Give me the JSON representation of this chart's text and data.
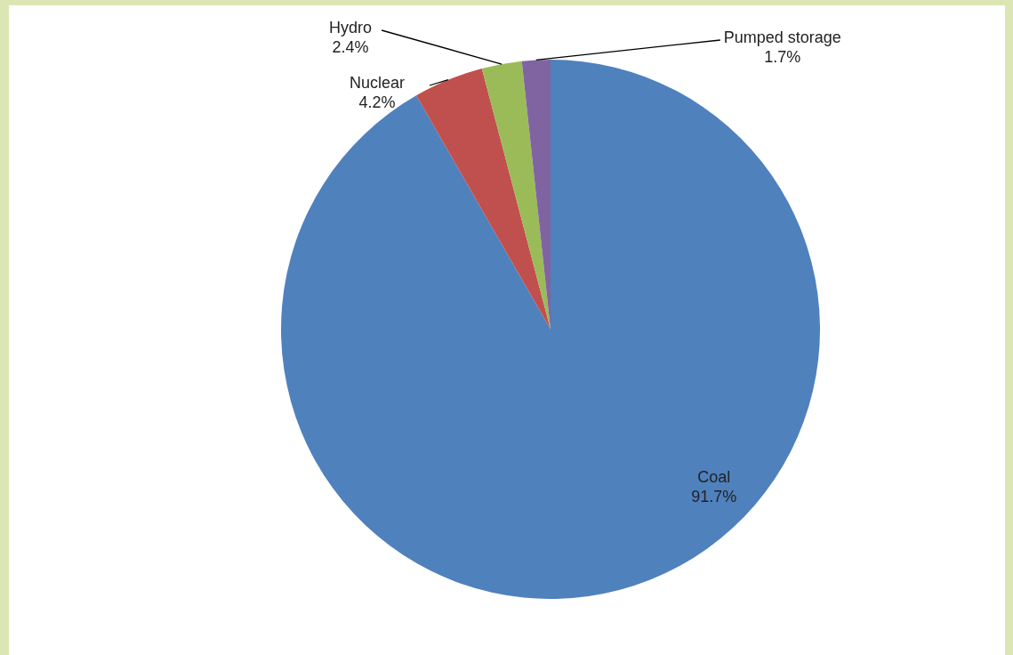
{
  "chart_data": {
    "type": "pie",
    "categories": [
      "Coal",
      "Nuclear",
      "Hydro",
      "Pumped storage"
    ],
    "values": [
      91.7,
      4.2,
      2.4,
      1.7
    ],
    "colors": [
      "#4f81bd",
      "#c0504d",
      "#9bbb59",
      "#8064a2"
    ],
    "value_labels": [
      "91.7%",
      "4.2%",
      "2.4%",
      "1.7%"
    ]
  }
}
